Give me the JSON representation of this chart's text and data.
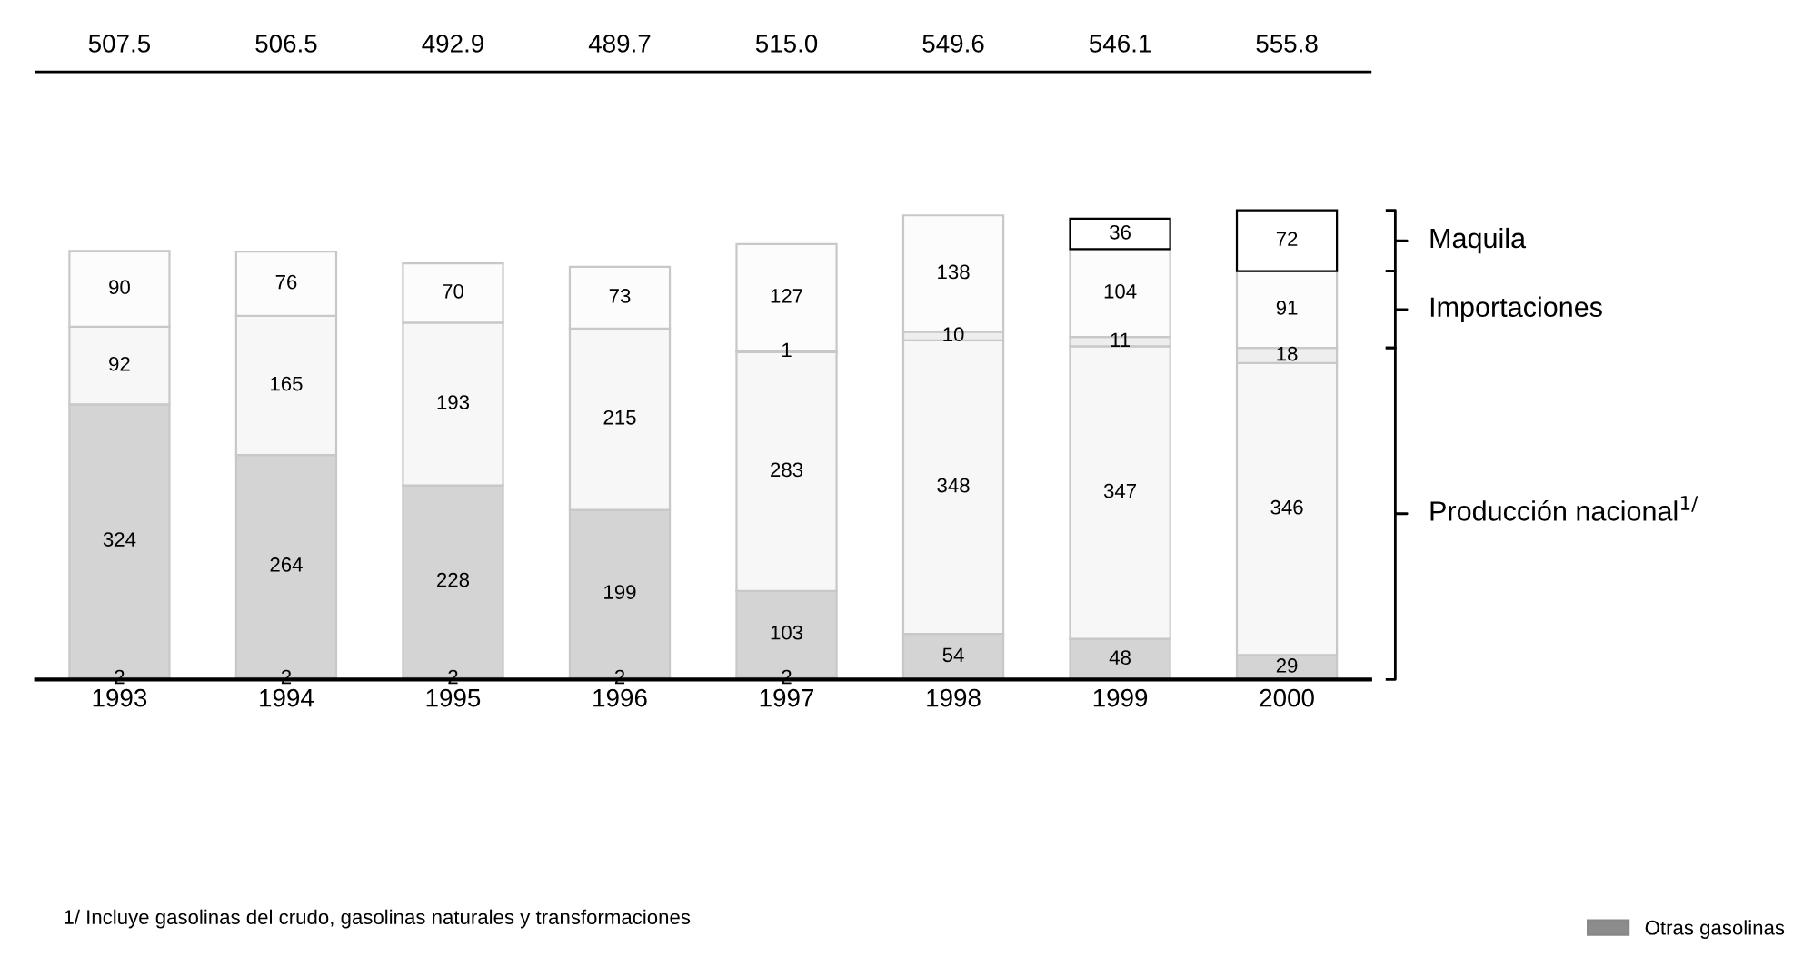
{
  "chart_data": {
    "type": "bar",
    "stacked": true,
    "categories": [
      "1993",
      "1994",
      "1995",
      "1996",
      "1997",
      "1998",
      "1999",
      "2000"
    ],
    "series": [
      {
        "name": "Otras gasolinas",
        "color": "#8c8c8c",
        "values": [
          2,
          2,
          2,
          2,
          2,
          null,
          null,
          null
        ]
      },
      {
        "color": "#d4d4d4",
        "values": [
          324,
          264,
          228,
          199,
          103,
          54,
          48,
          29
        ]
      },
      {
        "color": "#f7f7f7",
        "values": [
          92,
          165,
          193,
          215,
          283,
          348,
          347,
          346
        ]
      },
      {
        "color": "#eeeeee",
        "values": [
          null,
          null,
          null,
          null,
          1,
          10,
          11,
          18
        ]
      },
      {
        "color": "#fcfcfc",
        "values": [
          90,
          76,
          70,
          73,
          127,
          138,
          104,
          91
        ]
      },
      {
        "color": "#ffffff",
        "values": [
          null,
          null,
          null,
          null,
          null,
          null,
          36,
          72
        ]
      }
    ],
    "data_labels": true,
    "annotations": [
      "507.5",
      "506.5",
      "492.9",
      "489.7",
      "515.0",
      "549.6",
      "546.1",
      "555.8",
      "Maquila",
      "Importaciones",
      "Producción nacional$^{1/}$",
      "1/ Incluye gasolinas del crudo, gasolinas naturales y transformaciones"
    ],
    "legend": "bottom right",
    "grid": false
  }
}
